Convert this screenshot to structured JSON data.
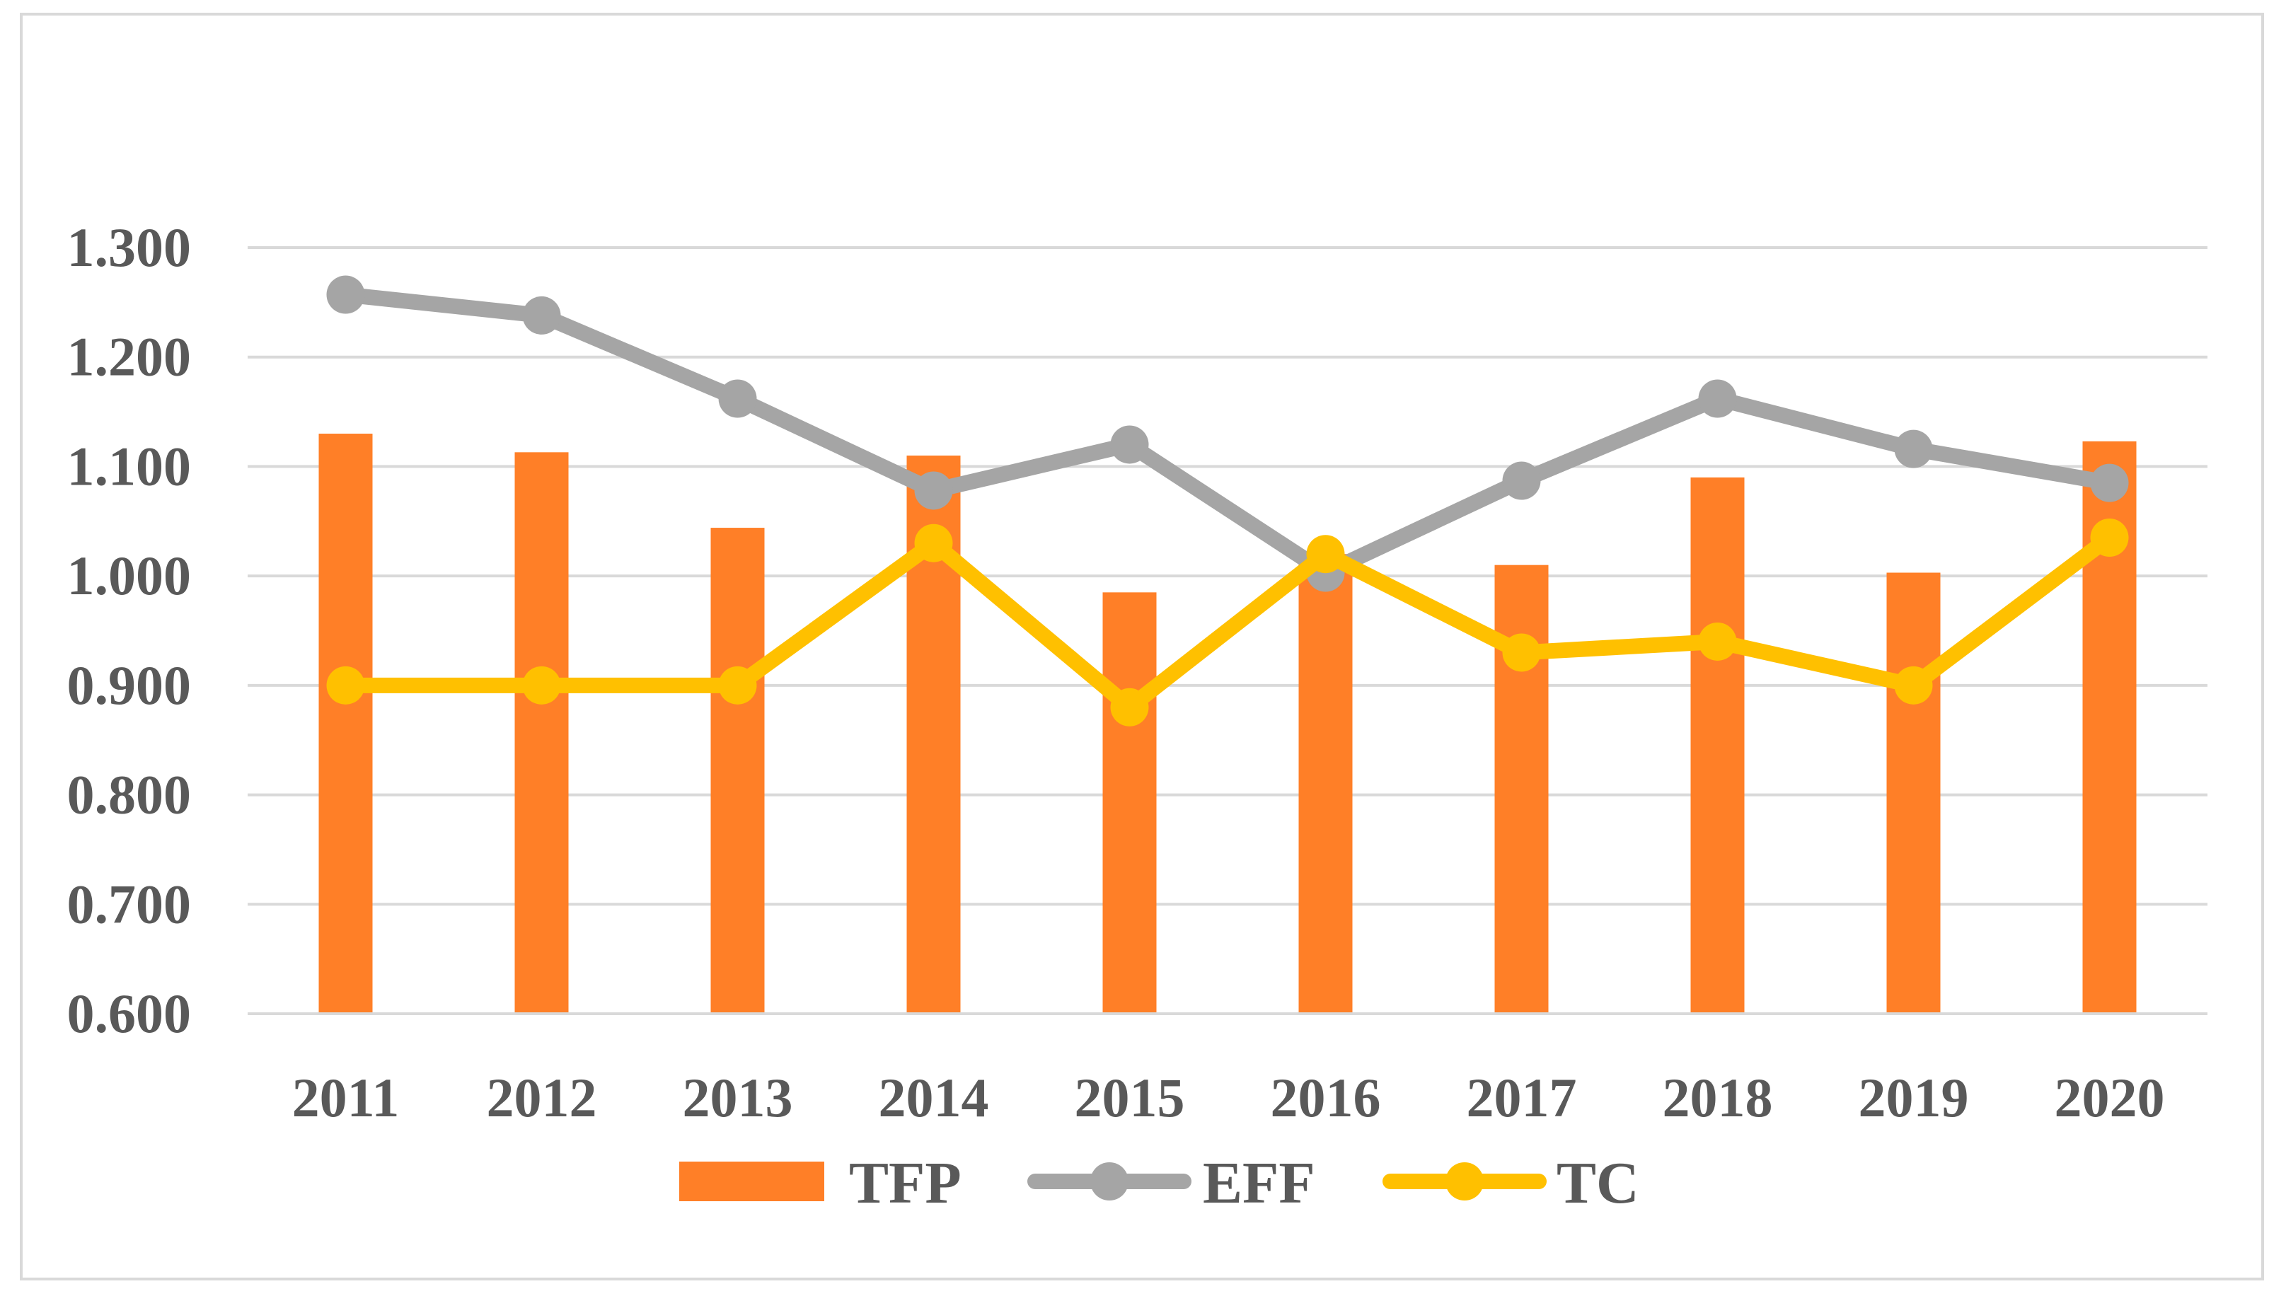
{
  "chart_data": {
    "type": "bar+line",
    "title": "",
    "xlabel": "",
    "ylabel": "",
    "ylim": [
      0.6,
      1.3
    ],
    "yticks": [
      "0.600",
      "0.700",
      "0.800",
      "0.900",
      "1.000",
      "1.100",
      "1.200",
      "1.300"
    ],
    "grid": true,
    "legend_position": "bottom",
    "categories": [
      "2011",
      "2012",
      "2013",
      "2014",
      "2015",
      "2016",
      "2017",
      "2018",
      "2019",
      "2020"
    ],
    "series": [
      {
        "name": "TFP",
        "kind": "bar",
        "color": "#ff7f27",
        "values": [
          1.13,
          1.113,
          1.044,
          1.11,
          0.985,
          1.02,
          1.01,
          1.09,
          1.003,
          1.123
        ]
      },
      {
        "name": "EFF",
        "kind": "line",
        "color": "#a5a5a5",
        "values": [
          1.257,
          1.238,
          1.162,
          1.078,
          1.12,
          1.003,
          1.087,
          1.162,
          1.116,
          1.085
        ]
      },
      {
        "name": "TC",
        "kind": "line",
        "color": "#ffc000",
        "values": [
          0.9,
          0.9,
          0.9,
          1.03,
          0.88,
          1.02,
          0.93,
          0.94,
          0.9,
          1.035
        ]
      }
    ]
  }
}
